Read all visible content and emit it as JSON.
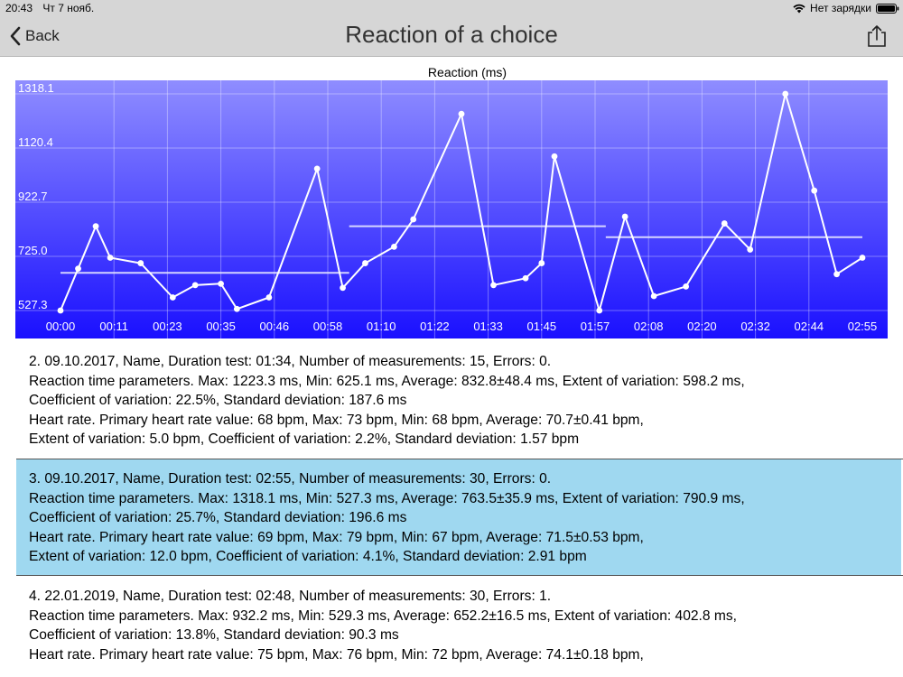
{
  "status_bar": {
    "time": "20:43",
    "date": "Чт 7 нояб.",
    "battery_text": "Нет зарядки"
  },
  "nav": {
    "back_label": "Back",
    "title": "Reaction of a choice"
  },
  "chart_data": {
    "type": "line",
    "title": "Reaction (ms)",
    "y_ticks": [
      "1318.1",
      "1120.4",
      "922.7",
      "725.0",
      "527.3"
    ],
    "x_ticks": [
      "00:00",
      "00:11",
      "00:23",
      "00:35",
      "00:46",
      "00:58",
      "01:10",
      "01:22",
      "01:33",
      "01:45",
      "01:57",
      "02:08",
      "02:20",
      "02:32",
      "02:44",
      "02:55"
    ],
    "ylim": [
      527.3,
      1318.1
    ],
    "xlim_index": [
      0,
      15
    ],
    "grid": true,
    "background": [
      "#8f8dff",
      "#1a10ff"
    ],
    "line_color": "#ffffff",
    "series": [
      {
        "points": [
          {
            "x": 0.0,
            "y": 527.3
          },
          {
            "x": 0.55,
            "y": 680
          },
          {
            "x": 1.1,
            "y": 835
          },
          {
            "x": 1.55,
            "y": 720
          },
          {
            "x": 2.5,
            "y": 700
          },
          {
            "x": 3.5,
            "y": 575
          },
          {
            "x": 4.2,
            "y": 620
          },
          {
            "x": 5.0,
            "y": 625
          },
          {
            "x": 5.5,
            "y": 533
          },
          {
            "x": 6.5,
            "y": 575
          },
          {
            "x": 8.0,
            "y": 1045
          },
          {
            "x": 8.8,
            "y": 610
          },
          {
            "x": 9.5,
            "y": 700
          },
          {
            "x": 10.4,
            "y": 760
          },
          {
            "x": 11.0,
            "y": 860
          },
          {
            "x": 12.5,
            "y": 1245
          },
          {
            "x": 13.5,
            "y": 620
          },
          {
            "x": 14.5,
            "y": 645
          },
          {
            "x": 15.0,
            "y": 700
          },
          {
            "x": 15.4,
            "y": 1090
          },
          {
            "x": 16.8,
            "y": 527.3
          },
          {
            "x": 17.6,
            "y": 870
          },
          {
            "x": 18.5,
            "y": 580
          },
          {
            "x": 19.5,
            "y": 615
          },
          {
            "x": 20.7,
            "y": 845
          },
          {
            "x": 21.5,
            "y": 750
          },
          {
            "x": 22.6,
            "y": 1318.1
          },
          {
            "x": 23.5,
            "y": 965
          },
          {
            "x": 24.2,
            "y": 660
          },
          {
            "x": 25.0,
            "y": 720
          }
        ]
      }
    ],
    "average_segments": [
      {
        "x_start": 0.0,
        "x_end": 9.0,
        "y": 665
      },
      {
        "x_start": 9.0,
        "y": 835,
        "x_end": 17.0
      },
      {
        "x_start": 17.0,
        "x_end": 25.0,
        "y": 795
      }
    ]
  },
  "records": [
    {
      "line1": "2. 09.10.2017, Name, Duration test: 01:34, Number of measurements: 15, Errors: 0.",
      "line2": "Reaction time parameters. Max: 1223.3 ms, Min: 625.1 ms, Average: 832.8±48.4 ms, Extent of variation: 598.2 ms,",
      "line3": "Coefficient of variation: 22.5%, Standard deviation: 187.6 ms",
      "line4": "Heart rate. Primary heart rate value: 68 bpm, Max: 73 bpm, Min: 68 bpm, Average: 70.7±0.41 bpm,",
      "line5": "Extent of variation: 5.0 bpm, Coefficient of variation: 2.2%, Standard deviation: 1.57 bpm"
    },
    {
      "line1": "3. 09.10.2017, Name, Duration test: 02:55, Number of measurements: 30, Errors: 0.",
      "line2": "Reaction time parameters. Max: 1318.1 ms, Min: 527.3 ms, Average: 763.5±35.9 ms, Extent of variation: 790.9 ms,",
      "line3": "Coefficient of variation: 25.7%, Standard deviation: 196.6 ms",
      "line4": "Heart rate. Primary heart rate value: 69 bpm, Max: 79 bpm, Min: 67 bpm, Average: 71.5±0.53 bpm,",
      "line5": "Extent of variation: 12.0 bpm, Coefficient of variation: 4.1%, Standard deviation: 2.91 bpm"
    },
    {
      "line1": "4. 22.01.2019, Name, Duration test: 02:48, Number of measurements: 30, Errors: 1.",
      "line2": "Reaction time parameters. Max: 932.2 ms, Min: 529.3 ms, Average: 652.2±16.5 ms, Extent of variation: 402.8 ms,",
      "line3": "Coefficient of variation: 13.8%, Standard deviation: 90.3 ms",
      "line4": "Heart rate. Primary heart rate value: 75 bpm, Max: 76 bpm, Min: 72 bpm, Average: 74.1±0.18 bpm,"
    }
  ],
  "selected_record": 1
}
